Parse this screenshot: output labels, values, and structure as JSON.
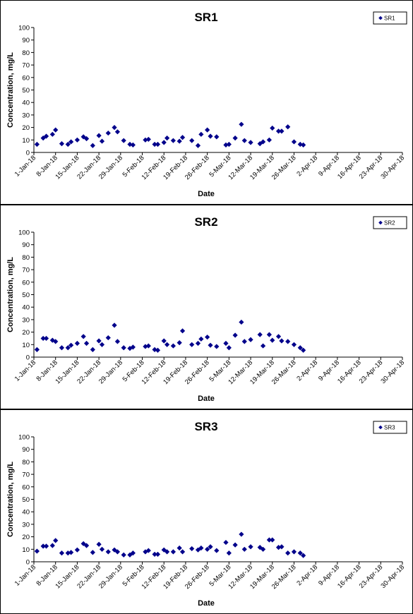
{
  "chart_data": [
    {
      "type": "scatter",
      "title": "SR1",
      "xlabel": "Date",
      "ylabel": "Concentration, mg/L",
      "ylim": [
        0,
        100
      ],
      "y_ticks": [
        0,
        10,
        20,
        30,
        40,
        50,
        60,
        70,
        80,
        90,
        100
      ],
      "x_range": [
        "2018-01-01",
        "2018-04-30"
      ],
      "x_ticks": [
        "1-Jan-18",
        "8-Jan-18",
        "15-Jan-18",
        "22-Jan-18",
        "29-Jan-18",
        "5-Feb-18",
        "12-Feb-18",
        "19-Feb-18",
        "26-Feb-18",
        "5-Mar-18",
        "12-Mar-18",
        "19-Mar-18",
        "26-Mar-18",
        "2-Apr-18",
        "9-Apr-18",
        "16-Apr-18",
        "23-Apr-18",
        "30-Apr-18"
      ],
      "grid": false,
      "legend_position": "top-right",
      "marker_color": "#00008B",
      "series": [
        {
          "name": "SR1",
          "points": [
            [
              "2018-01-02",
              6.5
            ],
            [
              "2018-01-04",
              11.5
            ],
            [
              "2018-01-05",
              13
            ],
            [
              "2018-01-07",
              14.5
            ],
            [
              "2018-01-08",
              18
            ],
            [
              "2018-01-10",
              7
            ],
            [
              "2018-01-12",
              6.5
            ],
            [
              "2018-01-13",
              8.5
            ],
            [
              "2018-01-15",
              10
            ],
            [
              "2018-01-17",
              12.5
            ],
            [
              "2018-01-18",
              11
            ],
            [
              "2018-01-20",
              5.5
            ],
            [
              "2018-01-22",
              13.5
            ],
            [
              "2018-01-23",
              9
            ],
            [
              "2018-01-25",
              15.5
            ],
            [
              "2018-01-27",
              20
            ],
            [
              "2018-01-28",
              16.5
            ],
            [
              "2018-01-30",
              9.5
            ],
            [
              "2018-02-01",
              6.5
            ],
            [
              "2018-02-02",
              6
            ],
            [
              "2018-02-06",
              10
            ],
            [
              "2018-02-07",
              10.5
            ],
            [
              "2018-02-09",
              6.5
            ],
            [
              "2018-02-10",
              6.5
            ],
            [
              "2018-02-12",
              8
            ],
            [
              "2018-02-13",
              11.5
            ],
            [
              "2018-02-15",
              9.5
            ],
            [
              "2018-02-17",
              9
            ],
            [
              "2018-02-18",
              12
            ],
            [
              "2018-02-21",
              9.5
            ],
            [
              "2018-02-23",
              5.5
            ],
            [
              "2018-02-24",
              14.5
            ],
            [
              "2018-02-26",
              18
            ],
            [
              "2018-02-27",
              13
            ],
            [
              "2018-03-01",
              12.5
            ],
            [
              "2018-03-04",
              6
            ],
            [
              "2018-03-05",
              6.5
            ],
            [
              "2018-03-07",
              11.5
            ],
            [
              "2018-03-09",
              22.5
            ],
            [
              "2018-03-10",
              9.5
            ],
            [
              "2018-03-12",
              8
            ],
            [
              "2018-03-15",
              7
            ],
            [
              "2018-03-16",
              8.5
            ],
            [
              "2018-03-18",
              10
            ],
            [
              "2018-03-19",
              19.5
            ],
            [
              "2018-03-21",
              17
            ],
            [
              "2018-03-22",
              17
            ],
            [
              "2018-03-24",
              20.5
            ],
            [
              "2018-03-26",
              8.5
            ],
            [
              "2018-03-28",
              6.5
            ],
            [
              "2018-03-29",
              6
            ]
          ]
        }
      ]
    },
    {
      "type": "scatter",
      "title": "SR2",
      "xlabel": "Date",
      "ylabel": "Concentration, mg/L",
      "ylim": [
        0,
        100
      ],
      "y_ticks": [
        0,
        10,
        20,
        30,
        40,
        50,
        60,
        70,
        80,
        90,
        100
      ],
      "x_range": [
        "2018-01-01",
        "2018-04-30"
      ],
      "x_ticks": [
        "1-Jan-18",
        "8-Jan-18",
        "15-Jan-18",
        "22-Jan-18",
        "29-Jan-18",
        "5-Feb-18",
        "12-Feb-18",
        "19-Feb-18",
        "26-Feb-18",
        "5-Mar-18",
        "12-Mar-18",
        "19-Mar-18",
        "26-Mar-18",
        "2-Apr-18",
        "9-Apr-18",
        "16-Apr-18",
        "23-Apr-18",
        "30-Apr-18"
      ],
      "grid": false,
      "legend_position": "top-right",
      "marker_color": "#00008B",
      "series": [
        {
          "name": "SR2",
          "points": [
            [
              "2018-01-02",
              6
            ],
            [
              "2018-01-04",
              15
            ],
            [
              "2018-01-05",
              15
            ],
            [
              "2018-01-07",
              13.5
            ],
            [
              "2018-01-08",
              12.5
            ],
            [
              "2018-01-10",
              7.5
            ],
            [
              "2018-01-12",
              7.5
            ],
            [
              "2018-01-13",
              9.5
            ],
            [
              "2018-01-15",
              11
            ],
            [
              "2018-01-17",
              16.5
            ],
            [
              "2018-01-18",
              11
            ],
            [
              "2018-01-20",
              6
            ],
            [
              "2018-01-22",
              13
            ],
            [
              "2018-01-23",
              10
            ],
            [
              "2018-01-25",
              15.5
            ],
            [
              "2018-01-27",
              25.5
            ],
            [
              "2018-01-28",
              12.5
            ],
            [
              "2018-01-30",
              7.5
            ],
            [
              "2018-02-01",
              7
            ],
            [
              "2018-02-02",
              8
            ],
            [
              "2018-02-06",
              8.5
            ],
            [
              "2018-02-07",
              9
            ],
            [
              "2018-02-09",
              6
            ],
            [
              "2018-02-10",
              5.5
            ],
            [
              "2018-02-12",
              13
            ],
            [
              "2018-02-13",
              10
            ],
            [
              "2018-02-15",
              9
            ],
            [
              "2018-02-17",
              11.5
            ],
            [
              "2018-02-18",
              21
            ],
            [
              "2018-02-21",
              10
            ],
            [
              "2018-02-23",
              11
            ],
            [
              "2018-02-24",
              14.5
            ],
            [
              "2018-02-26",
              16
            ],
            [
              "2018-02-27",
              9.5
            ],
            [
              "2018-03-01",
              8.5
            ],
            [
              "2018-03-04",
              11
            ],
            [
              "2018-03-05",
              7.5
            ],
            [
              "2018-03-07",
              17.5
            ],
            [
              "2018-03-09",
              28
            ],
            [
              "2018-03-10",
              12.5
            ],
            [
              "2018-03-12",
              14
            ],
            [
              "2018-03-15",
              18
            ],
            [
              "2018-03-16",
              9
            ],
            [
              "2018-03-18",
              18
            ],
            [
              "2018-03-19",
              13.5
            ],
            [
              "2018-03-21",
              16.5
            ],
            [
              "2018-03-22",
              13
            ],
            [
              "2018-03-24",
              12.5
            ],
            [
              "2018-03-26",
              10
            ],
            [
              "2018-03-28",
              7.5
            ],
            [
              "2018-03-29",
              5.5
            ]
          ]
        }
      ]
    },
    {
      "type": "scatter",
      "title": "SR3",
      "xlabel": "Date",
      "ylabel": "Concentration, mg/L",
      "ylim": [
        0,
        100
      ],
      "y_ticks": [
        0,
        10,
        20,
        30,
        40,
        50,
        60,
        70,
        80,
        90,
        100
      ],
      "x_range": [
        "2018-01-01",
        "2018-04-30"
      ],
      "x_ticks": [
        "1-Jan-18",
        "8-Jan-18",
        "15-Jan-18",
        "22-Jan-18",
        "29-Jan-18",
        "5-Feb-18",
        "12-Feb-18",
        "19-Feb-18",
        "26-Feb-18",
        "5-Mar-18",
        "12-Mar-18",
        "19-Mar-18",
        "26-Mar-18",
        "2-Apr-18",
        "9-Apr-18",
        "16-Apr-18",
        "23-Apr-18",
        "30-Apr-18"
      ],
      "grid": false,
      "legend_position": "top-right",
      "marker_color": "#00008B",
      "series": [
        {
          "name": "SR3",
          "points": [
            [
              "2018-01-02",
              8.5
            ],
            [
              "2018-01-04",
              12.5
            ],
            [
              "2018-01-05",
              12.5
            ],
            [
              "2018-01-07",
              13
            ],
            [
              "2018-01-08",
              17
            ],
            [
              "2018-01-10",
              7
            ],
            [
              "2018-01-12",
              7
            ],
            [
              "2018-01-13",
              7.5
            ],
            [
              "2018-01-15",
              9.5
            ],
            [
              "2018-01-17",
              14.5
            ],
            [
              "2018-01-18",
              13
            ],
            [
              "2018-01-20",
              7.5
            ],
            [
              "2018-01-22",
              14
            ],
            [
              "2018-01-23",
              10
            ],
            [
              "2018-01-25",
              8
            ],
            [
              "2018-01-27",
              9.5
            ],
            [
              "2018-01-28",
              8
            ],
            [
              "2018-01-30",
              5.5
            ],
            [
              "2018-02-01",
              5.5
            ],
            [
              "2018-02-02",
              7
            ],
            [
              "2018-02-06",
              8
            ],
            [
              "2018-02-07",
              9
            ],
            [
              "2018-02-09",
              6
            ],
            [
              "2018-02-10",
              6
            ],
            [
              "2018-02-12",
              9.5
            ],
            [
              "2018-02-13",
              8
            ],
            [
              "2018-02-15",
              8
            ],
            [
              "2018-02-17",
              11
            ],
            [
              "2018-02-18",
              8
            ],
            [
              "2018-02-21",
              10.5
            ],
            [
              "2018-02-23",
              9.5
            ],
            [
              "2018-02-24",
              11
            ],
            [
              "2018-02-26",
              10
            ],
            [
              "2018-02-27",
              12
            ],
            [
              "2018-03-01",
              9
            ],
            [
              "2018-03-04",
              15.5
            ],
            [
              "2018-03-05",
              7
            ],
            [
              "2018-03-07",
              13.5
            ],
            [
              "2018-03-09",
              22
            ],
            [
              "2018-03-10",
              10
            ],
            [
              "2018-03-12",
              12
            ],
            [
              "2018-03-15",
              11.5
            ],
            [
              "2018-03-16",
              10
            ],
            [
              "2018-03-18",
              17.5
            ],
            [
              "2018-03-19",
              17.5
            ],
            [
              "2018-03-21",
              11.5
            ],
            [
              "2018-03-22",
              12
            ],
            [
              "2018-03-24",
              7
            ],
            [
              "2018-03-26",
              8
            ],
            [
              "2018-03-28",
              7
            ],
            [
              "2018-03-29",
              5
            ]
          ]
        }
      ]
    }
  ]
}
